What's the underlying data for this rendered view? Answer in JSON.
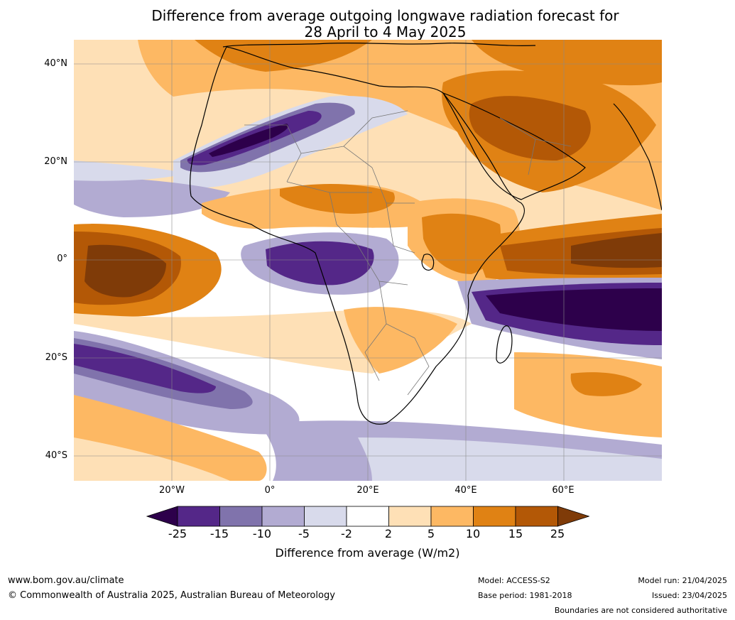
{
  "title": {
    "line1": "Difference from average outgoing longwave radiation forecast for",
    "line2": "28 April to 4 May 2025"
  },
  "map": {
    "lat_labels": [
      "40°N",
      "20°N",
      "0°",
      "20°S",
      "40°S"
    ],
    "lon_labels": [
      "20°W",
      "0°",
      "20°E",
      "40°E",
      "60°E"
    ]
  },
  "colorbar": {
    "title": "Difference from average (W/m2)",
    "ticks": [
      "-25",
      "-15",
      "-10",
      "-5",
      "-2",
      "2",
      "5",
      "10",
      "15",
      "25"
    ],
    "colors": [
      "#2d004b",
      "#542788",
      "#8073ac",
      "#b2abd2",
      "#d8daeb",
      "#ffffff",
      "#fee0b6",
      "#fdb863",
      "#e08214",
      "#b35806",
      "#7f3b08"
    ]
  },
  "footer": {
    "website": "www.bom.gov.au/climate",
    "copyright": "© Commonwealth of Australia 2025, Australian Bureau of Meteorology",
    "model": "Model: ACCESS-S2",
    "base_period": "Base period: 1981-2018",
    "model_run": "Model run: 21/04/2025",
    "issued": "Issued: 23/04/2025",
    "disclaimer": "Boundaries are not considered authoritative"
  }
}
